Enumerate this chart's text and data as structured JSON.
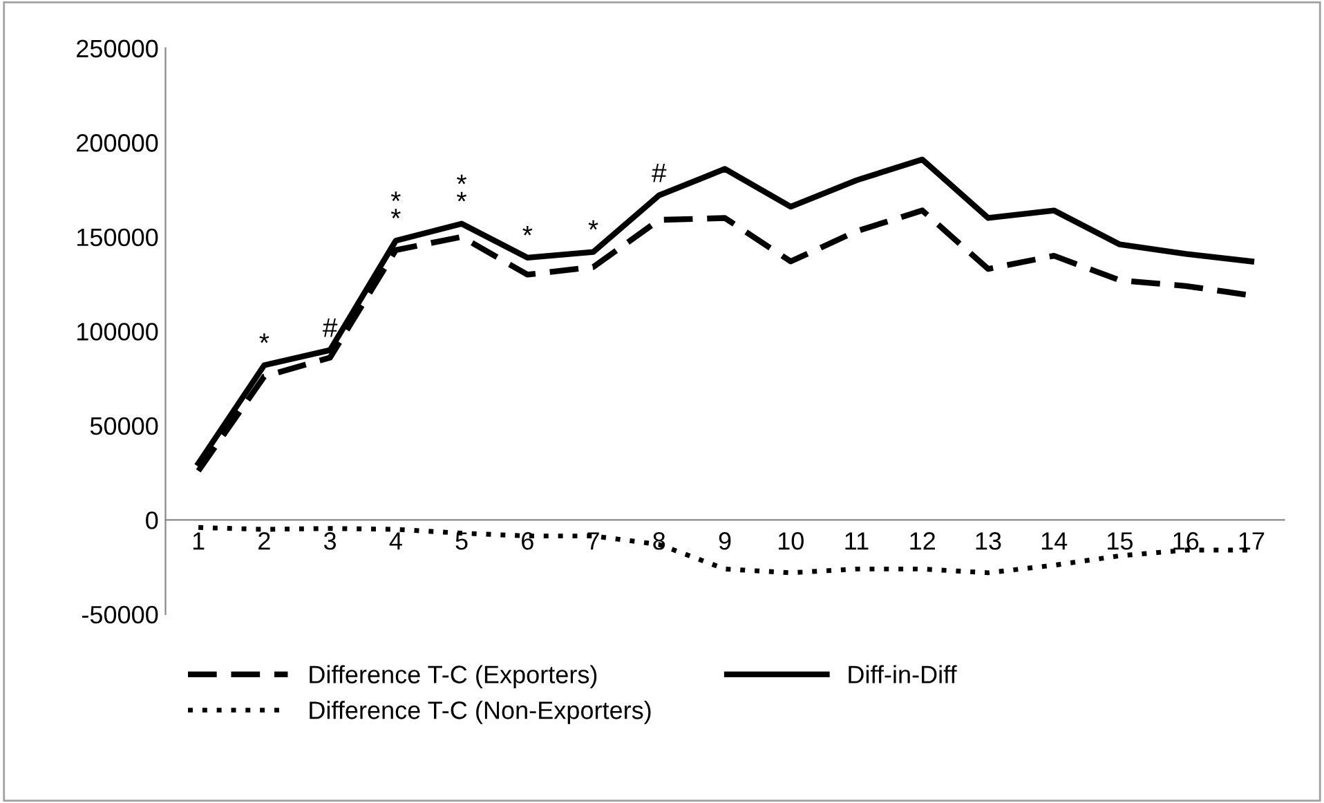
{
  "chart_data": {
    "type": "line",
    "categories": [
      "1",
      "2",
      "3",
      "4",
      "5",
      "6",
      "7",
      "8",
      "9",
      "10",
      "11",
      "12",
      "13",
      "14",
      "15",
      "16",
      "17"
    ],
    "series": [
      {
        "name": "Difference T-C (Exporters)",
        "color": "#000000",
        "line_style": "dashed",
        "values": [
          26000,
          76000,
          86000,
          143000,
          150000,
          130000,
          134000,
          159000,
          160000,
          137000,
          153000,
          164000,
          133000,
          140000,
          127000,
          124000,
          119000
        ]
      },
      {
        "name": "Difference T-C (Non-Exporters)",
        "color": "#000000",
        "line_style": "dotted",
        "values": [
          -4000,
          -5000,
          -4500,
          -5000,
          -7000,
          -8500,
          -8500,
          -13000,
          -26000,
          -28000,
          -26000,
          -26000,
          -28000,
          -24000,
          -19000,
          -16000,
          -16000
        ]
      },
      {
        "name": "Diff-in-Diff",
        "color": "#000000",
        "line_style": "solid",
        "values": [
          30000,
          82000,
          90000,
          148000,
          157000,
          139000,
          142000,
          172000,
          186000,
          166000,
          180000,
          191000,
          160000,
          164000,
          146000,
          141000,
          137000
        ]
      }
    ],
    "ylim": [
      -50000,
      250000
    ],
    "yticks": [
      -50000,
      0,
      50000,
      100000,
      150000,
      200000,
      250000
    ],
    "grid": false,
    "legend": "bottom",
    "marker": "none",
    "annotations": [
      {
        "text": "*",
        "x": "2",
        "y": 82000
      },
      {
        "text": "#",
        "x": "3",
        "y": 90000
      },
      {
        "text": "*\n*",
        "x": "4",
        "y": 148000
      },
      {
        "text": "*\n*",
        "x": "5",
        "y": 157000
      },
      {
        "text": "*",
        "x": "6",
        "y": 139000
      },
      {
        "text": "*",
        "x": "7",
        "y": 142000
      },
      {
        "text": "#",
        "x": "8",
        "y": 172000
      }
    ]
  }
}
